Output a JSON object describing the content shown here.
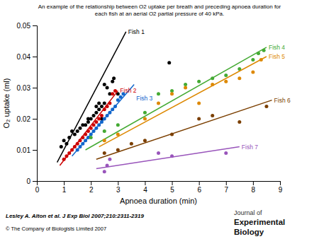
{
  "chart_data": {
    "type": "scatter",
    "title": "An example of the relationship between O2 uptake per breath and preceding apnoea duration for\neach fish at an aerial O2 partial pressure of 40 kPa.",
    "xlabel": "Apnoea duration (min)",
    "ylabel": "O₂ uptake (ml)",
    "xlim": [
      0,
      9
    ],
    "ylim": [
      0,
      0.05
    ],
    "xticks": [
      0,
      1,
      2,
      3,
      4,
      5,
      6,
      7,
      8,
      9
    ],
    "yticks": [
      0,
      0.01,
      0.02,
      0.03,
      0.04,
      0.05
    ],
    "grid": false,
    "series": [
      {
        "name": "Fish 1",
        "color": "#000000",
        "x": [
          0.9,
          1.0,
          1.1,
          1.2,
          1.3,
          1.4,
          1.5,
          1.6,
          1.7,
          1.8,
          1.9,
          2.0,
          1.9,
          2.1,
          2.2,
          2.2,
          2.3,
          2.3,
          2.4,
          2.4,
          2.5,
          2.5,
          2.6,
          2.7,
          2.8,
          2.85,
          3.0,
          4.9
        ],
        "values": [
          0.011,
          0.013,
          0.012,
          0.014,
          0.016,
          0.015,
          0.016,
          0.017,
          0.018,
          0.018,
          0.019,
          0.02,
          0.02,
          0.021,
          0.022,
          0.024,
          0.023,
          0.025,
          0.02,
          0.024,
          0.025,
          0.031,
          0.03,
          0.028,
          0.032,
          0.033,
          0.028,
          0.038
        ],
        "fit": {
          "x": [
            0.75,
            3.3
          ],
          "values": [
            0.006,
            0.048
          ]
        }
      },
      {
        "name": "Fish 2",
        "color": "#cc0000",
        "x": [
          1.0,
          1.1,
          1.2,
          1.3,
          1.4,
          1.5,
          1.6,
          1.7,
          1.8,
          1.9,
          2.0,
          2.1,
          2.2,
          2.3,
          2.4,
          2.5,
          2.6,
          2.7,
          2.8,
          2.9
        ],
        "values": [
          0.007,
          0.008,
          0.009,
          0.01,
          0.011,
          0.012,
          0.013,
          0.014,
          0.015,
          0.016,
          0.017,
          0.018,
          0.019,
          0.02,
          0.021,
          0.023,
          0.024,
          0.025,
          0.028,
          0.029
        ],
        "fit": {
          "x": [
            0.85,
            3.0
          ],
          "values": [
            0.005,
            0.029
          ]
        }
      },
      {
        "name": "Fish 3",
        "color": "#1166cc",
        "x": [
          1.5,
          1.6,
          1.7,
          1.8,
          1.9,
          2.0,
          2.1,
          2.2,
          2.3,
          2.4,
          2.5,
          2.6,
          2.7,
          2.8,
          2.9,
          3.0,
          3.1,
          3.2
        ],
        "values": [
          0.01,
          0.011,
          0.012,
          0.013,
          0.014,
          0.015,
          0.016,
          0.017,
          0.018,
          0.019,
          0.02,
          0.021,
          0.022,
          0.023,
          0.024,
          0.026,
          0.027,
          0.028
        ],
        "fit": {
          "x": [
            1.3,
            3.6
          ],
          "values": [
            0.008,
            0.031
          ]
        }
      },
      {
        "name": "Fish 4",
        "color": "#44aa33",
        "x": [
          2.0,
          2.5,
          3.0,
          4.0,
          4.5,
          5.0,
          5.5,
          6.0,
          6.5,
          7.0,
          7.5,
          8.0,
          8.2,
          8.4
        ],
        "values": [
          0.014,
          0.016,
          0.018,
          0.022,
          0.028,
          0.029,
          0.031,
          0.032,
          0.033,
          0.034,
          0.036,
          0.039,
          0.041,
          0.042
        ],
        "fit": {
          "x": [
            1.8,
            8.5
          ],
          "values": [
            0.01,
            0.043
          ]
        }
      },
      {
        "name": "Fish 5",
        "color": "#dd8800",
        "x": [
          2.5,
          3.0,
          4.0,
          4.5,
          5.0,
          5.5,
          6.0,
          6.5,
          7.0,
          7.5,
          8.0,
          8.3
        ],
        "values": [
          0.013,
          0.015,
          0.02,
          0.025,
          0.028,
          0.03,
          0.025,
          0.031,
          0.032,
          0.033,
          0.035,
          0.039
        ],
        "fit": {
          "x": [
            2.3,
            8.5
          ],
          "values": [
            0.011,
            0.04
          ]
        }
      },
      {
        "name": "Fish 6",
        "color": "#7b3f00",
        "x": [
          2.5,
          3.0,
          3.5,
          4.0,
          5.0,
          6.0,
          6.5,
          7.5,
          8.5
        ],
        "values": [
          0.009,
          0.01,
          0.012,
          0.013,
          0.015,
          0.02,
          0.021,
          0.019,
          0.024
        ],
        "fit": {
          "x": [
            2.2,
            8.7
          ],
          "values": [
            0.007,
            0.026
          ]
        }
      },
      {
        "name": "Fish 7",
        "color": "#9955bb",
        "x": [
          2.5,
          2.6,
          2.7,
          4.5,
          5.0,
          7.0
        ],
        "values": [
          0.003,
          0.005,
          0.007,
          0.009,
          0.008,
          0.009
        ],
        "fit": {
          "x": [
            2.2,
            7.5
          ],
          "values": [
            0.004,
            0.011
          ]
        }
      }
    ],
    "footnotes": [
      "Lesley A. Alton et al. J Exp Biol 2007;210:2311-2319",
      "© The Company of Biologists Limited 2007"
    ],
    "annotations": [
      "Journal of",
      "Experimental",
      "Biology"
    ]
  }
}
